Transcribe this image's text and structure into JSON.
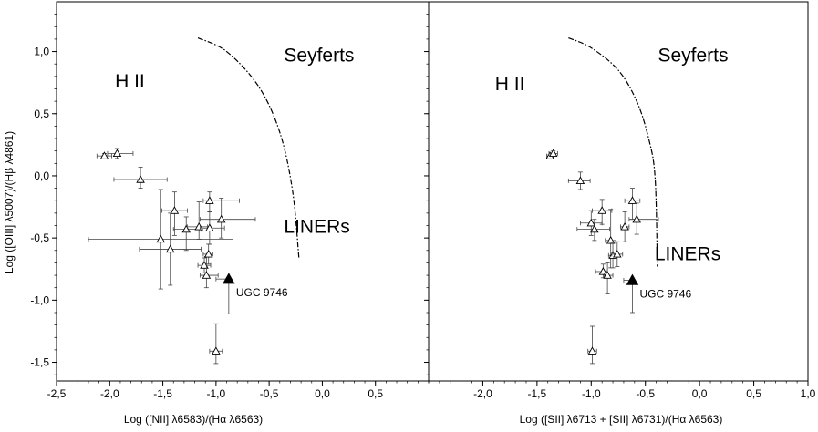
{
  "chart_data": [
    {
      "type": "scatter",
      "xlabel": "Log ([NII] λ6583)/(Hα λ6563)",
      "ylabel": "Log ([OIII] λ5007)/(Hβ λ4861)",
      "xlim": [
        -2.5,
        1.0
      ],
      "ylim": [
        -1.65,
        1.4
      ],
      "xticks": [
        -2.5,
        -2.0,
        -1.5,
        -1.0,
        -0.5,
        0.0,
        0.5
      ],
      "xtick_labels": [
        "-2,5",
        "-2,0",
        "-1,5",
        "-1,0",
        "-0,5",
        "0,0",
        "0,5"
      ],
      "yticks": [
        -1.5,
        -1.0,
        -0.5,
        0.0,
        0.5,
        1.0
      ],
      "ytick_labels": [
        "-1,5",
        "-1,0",
        "-0,5",
        "0,0",
        "0,5",
        "1,0"
      ],
      "grid": false,
      "region_labels": [
        {
          "text": "H II",
          "x": -1.81,
          "y": 0.71
        },
        {
          "text": "Seyferts",
          "x": -0.03,
          "y": 0.92
        },
        {
          "text": "LINERs",
          "x": -0.05,
          "y": -0.46
        }
      ],
      "boundary": [
        [
          -1.17,
          1.11
        ],
        [
          -0.9,
          1.0
        ],
        [
          -0.6,
          0.72
        ],
        [
          -0.4,
          0.35
        ],
        [
          -0.28,
          -0.12
        ],
        [
          -0.22,
          -0.66
        ]
      ],
      "series": [
        {
          "marker": "open-triangle",
          "points": [
            {
              "x": -2.05,
              "y": 0.16,
              "xerr": [
                0.07,
                0.07
              ],
              "yerr": [
                0.02,
                0.02
              ]
            },
            {
              "x": -1.93,
              "y": 0.18,
              "xerr": [
                0.09,
                0.15
              ],
              "yerr": [
                0.04,
                0.04
              ]
            },
            {
              "x": -1.71,
              "y": -0.03,
              "xerr": [
                0.25,
                0.25
              ],
              "yerr": [
                0.1,
                0.07
              ]
            },
            {
              "x": -1.52,
              "y": -0.51,
              "xerr": [
                0.68,
                0.68
              ],
              "yerr": [
                0.4,
                0.4
              ]
            },
            {
              "x": -1.43,
              "y": -0.59,
              "xerr": [
                0.29,
                0.29
              ],
              "yerr": [
                0.29,
                0.29
              ]
            },
            {
              "x": -1.39,
              "y": -0.28,
              "xerr": [
                0.12,
                0.12
              ],
              "yerr": [
                0.15,
                0.2
              ]
            },
            {
              "x": -1.28,
              "y": -0.43,
              "xerr": [
                0.12,
                0.14
              ],
              "yerr": [
                0.1,
                0.17
              ]
            },
            {
              "x": -1.16,
              "y": -0.41,
              "xerr": [
                0.11,
                0.08
              ],
              "yerr": [
                0.2,
                0.1
              ]
            },
            {
              "x": -1.06,
              "y": -0.42,
              "xerr": [
                0.09,
                0.14
              ],
              "yerr": [
                0.13,
                0.13
              ]
            },
            {
              "x": -1.11,
              "y": -0.72,
              "xerr": [
                0.06,
                0.06
              ],
              "yerr": [
                0.06,
                0.06
              ]
            },
            {
              "x": -1.09,
              "y": -0.8,
              "xerr": [
                0.06,
                0.11
              ],
              "yerr": [
                0.15,
                0.1
              ]
            },
            {
              "x": -1.07,
              "y": -0.63,
              "xerr": [
                0.05,
                0.04
              ],
              "yerr": [
                0.08,
                0.08
              ]
            },
            {
              "x": -1.06,
              "y": -0.2,
              "xerr": [
                0.06,
                0.28
              ],
              "yerr": [
                0.07,
                0.09
              ]
            },
            {
              "x": -0.95,
              "y": -0.35,
              "xerr": [
                0.2,
                0.32
              ],
              "yerr": [
                0.17,
                0.15
              ]
            },
            {
              "x": -1.0,
              "y": -1.41,
              "xerr": [
                0.06,
                0.06
              ],
              "yerr": [
                0.22,
                0.1
              ]
            }
          ]
        },
        {
          "name": "UGC 9746",
          "marker": "filled-triangle",
          "points": [
            {
              "x": -0.88,
              "y": -0.83,
              "xerr": [
                0.12,
                0.0
              ],
              "yerr": [
                0.0,
                0.28
              ]
            }
          ]
        }
      ]
    },
    {
      "type": "scatter",
      "xlabel": "Log ([SII] λ6713 + [SII] λ6731)/(Hα λ6563)",
      "ylabel": "",
      "xlim": [
        -2.5,
        1.0
      ],
      "ylim": [
        -1.65,
        1.4
      ],
      "xticks": [
        -2.0,
        -1.5,
        -1.0,
        -0.5,
        0.0,
        0.5,
        1.0
      ],
      "xtick_labels": [
        "-2,0",
        "-1,5",
        "-1,0",
        "-0,5",
        "0,0",
        "0,5",
        "1,0"
      ],
      "grid": false,
      "region_labels": [
        {
          "text": "H II",
          "x": -1.75,
          "y": 0.69
        },
        {
          "text": "Seyferts",
          "x": -0.06,
          "y": 0.92
        },
        {
          "text": "LINERs",
          "x": -0.11,
          "y": -0.68
        }
      ],
      "boundary": [
        [
          -1.21,
          1.11
        ],
        [
          -1.0,
          1.03
        ],
        [
          -0.75,
          0.85
        ],
        [
          -0.58,
          0.6
        ],
        [
          -0.47,
          0.3
        ],
        [
          -0.41,
          -0.02
        ],
        [
          -0.39,
          -0.73
        ]
      ],
      "series": [
        {
          "marker": "open-triangle",
          "points": [
            {
              "x": -1.38,
              "y": 0.16,
              "xerr": [
                0.03,
                0.03
              ],
              "yerr": [
                0.01,
                0.01
              ]
            },
            {
              "x": -1.35,
              "y": 0.18,
              "xerr": [
                0.04,
                0.04
              ],
              "yerr": [
                0.02,
                0.02
              ]
            },
            {
              "x": -1.1,
              "y": -0.04,
              "xerr": [
                0.11,
                0.09
              ],
              "yerr": [
                0.07,
                0.07
              ]
            },
            {
              "x": -1.0,
              "y": -0.38,
              "xerr": [
                0.1,
                0.1
              ],
              "yerr": [
                0.1,
                0.1
              ]
            },
            {
              "x": -0.97,
              "y": -0.43,
              "xerr": [
                0.16,
                0.14
              ],
              "yerr": [
                0.08,
                0.09
              ]
            },
            {
              "x": -0.9,
              "y": -0.28,
              "xerr": [
                0.09,
                0.09
              ],
              "yerr": [
                0.09,
                0.11
              ]
            },
            {
              "x": -0.89,
              "y": -0.77,
              "xerr": [
                0.07,
                0.04
              ],
              "yerr": [
                0.06,
                0.05
              ]
            },
            {
              "x": -0.85,
              "y": -0.8,
              "xerr": [
                0.03,
                0.05
              ],
              "yerr": [
                0.1,
                0.15
              ]
            },
            {
              "x": -0.82,
              "y": -0.52,
              "xerr": [
                0.05,
                0.05
              ],
              "yerr": [
                0.25,
                0.22
              ]
            },
            {
              "x": -0.8,
              "y": -0.64,
              "xerr": [
                0.04,
                0.04
              ],
              "yerr": [
                0.1,
                0.1
              ]
            },
            {
              "x": -0.76,
              "y": -0.63,
              "xerr": [
                0.05,
                0.05
              ],
              "yerr": [
                0.1,
                0.1
              ]
            },
            {
              "x": -0.69,
              "y": -0.41,
              "xerr": [
                0.04,
                0.04
              ],
              "yerr": [
                0.12,
                0.12
              ]
            },
            {
              "x": -0.62,
              "y": -0.2,
              "xerr": [
                0.07,
                0.07
              ],
              "yerr": [
                0.1,
                0.15
              ]
            },
            {
              "x": -0.58,
              "y": -0.35,
              "xerr": [
                0.07,
                0.2
              ],
              "yerr": [
                0.13,
                0.12
              ]
            },
            {
              "x": -0.99,
              "y": -1.41,
              "xerr": [
                0.04,
                0.04
              ],
              "yerr": [
                0.2,
                0.1
              ]
            }
          ]
        },
        {
          "name": "UGC 9746",
          "marker": "filled-triangle",
          "points": [
            {
              "x": -0.62,
              "y": -0.84,
              "xerr": [
                0.08,
                0.0
              ],
              "yerr": [
                0.0,
                0.26
              ]
            }
          ]
        }
      ]
    }
  ]
}
